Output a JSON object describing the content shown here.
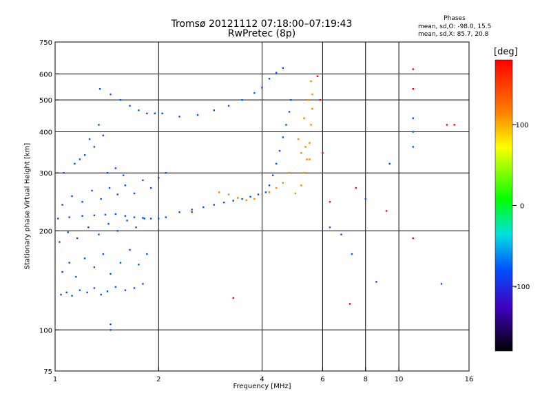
{
  "chart_data": {
    "type": "scatter",
    "title": "Tromsø 20121112 07:18:00–07:19:43",
    "subtitle": "RwPretec (8p)",
    "xlabel": "Frequency [MHz]",
    "ylabel": "Stationary phase Virtual Height [km]",
    "x_scale": "log",
    "y_scale": "log",
    "xlim": [
      1,
      16
    ],
    "ylim": [
      75,
      750
    ],
    "x_ticks": [
      1,
      2,
      4,
      6,
      8,
      10,
      16
    ],
    "y_ticks": [
      75,
      100,
      200,
      300,
      400,
      500,
      600,
      750
    ],
    "x_gridlines": [
      2,
      4,
      6,
      8,
      10
    ],
    "y_gridlines": [
      100,
      200,
      300,
      400,
      500,
      600
    ],
    "grid": true,
    "stats": {
      "heading": "Phases",
      "line_o": "mean, sd,O: -98.0, 15.5",
      "line_x": "mean, sd,X:  85.7, 20.8"
    },
    "colorbar": {
      "label": "[deg]",
      "ticks": [
        100,
        0,
        -100
      ],
      "range": [
        -180,
        180
      ]
    },
    "series": [
      {
        "phase_deg": -105,
        "points": [
          [
            1.04,
            128
          ],
          [
            1.08,
            130
          ],
          [
            1.12,
            127
          ],
          [
            1.18,
            132
          ],
          [
            1.24,
            130
          ],
          [
            1.3,
            134
          ],
          [
            1.36,
            128
          ],
          [
            1.42,
            131
          ],
          [
            1.5,
            135
          ],
          [
            1.6,
            132
          ],
          [
            1.7,
            134
          ],
          [
            1.8,
            138
          ],
          [
            1.05,
            150
          ],
          [
            1.1,
            160
          ],
          [
            1.15,
            145
          ],
          [
            1.22,
            165
          ],
          [
            1.3,
            155
          ],
          [
            1.38,
            170
          ],
          [
            1.45,
            148
          ],
          [
            1.55,
            160
          ],
          [
            1.65,
            175
          ],
          [
            1.75,
            158
          ],
          [
            1.85,
            170
          ],
          [
            1.03,
            185
          ],
          [
            1.09,
            198
          ],
          [
            1.16,
            190
          ],
          [
            1.25,
            205
          ],
          [
            1.34,
            195
          ],
          [
            1.43,
            210
          ],
          [
            1.52,
            200
          ],
          [
            1.62,
            215
          ],
          [
            1.72,
            205
          ],
          [
            1.82,
            218
          ],
          [
            1.02,
            218
          ],
          [
            1.1,
            220
          ],
          [
            1.2,
            222
          ],
          [
            1.3,
            223
          ],
          [
            1.4,
            224
          ],
          [
            1.5,
            225
          ],
          [
            1.6,
            222
          ],
          [
            1.7,
            220
          ],
          [
            1.8,
            219
          ],
          [
            1.9,
            218
          ],
          [
            2.0,
            218
          ],
          [
            2.1,
            220
          ],
          [
            1.05,
            240
          ],
          [
            1.12,
            255
          ],
          [
            1.2,
            245
          ],
          [
            1.28,
            265
          ],
          [
            1.36,
            250
          ],
          [
            1.44,
            270
          ],
          [
            1.52,
            258
          ],
          [
            1.6,
            275
          ],
          [
            1.7,
            260
          ],
          [
            1.8,
            285
          ],
          [
            1.9,
            270
          ],
          [
            2.0,
            290
          ],
          [
            2.1,
            300
          ],
          [
            1.06,
            300
          ],
          [
            1.14,
            320
          ],
          [
            1.22,
            340
          ],
          [
            1.3,
            360
          ],
          [
            1.38,
            390
          ],
          [
            1.34,
            420
          ],
          [
            1.26,
            380
          ],
          [
            1.18,
            330
          ],
          [
            1.42,
            300
          ],
          [
            1.5,
            310
          ],
          [
            1.58,
            295
          ],
          [
            2.3,
            228
          ],
          [
            2.5,
            232
          ],
          [
            2.7,
            236
          ],
          [
            2.9,
            240
          ],
          [
            3.1,
            244
          ],
          [
            3.3,
            247
          ],
          [
            3.5,
            250
          ],
          [
            3.7,
            254
          ],
          [
            3.9,
            258
          ],
          [
            4.1,
            262
          ],
          [
            4.2,
            275
          ],
          [
            4.3,
            295
          ],
          [
            4.4,
            320
          ],
          [
            4.5,
            350
          ],
          [
            4.6,
            385
          ],
          [
            4.7,
            420
          ],
          [
            4.8,
            460
          ],
          [
            4.85,
            500
          ],
          [
            1.35,
            540
          ],
          [
            1.45,
            520
          ],
          [
            1.55,
            500
          ],
          [
            1.65,
            480
          ],
          [
            1.75,
            465
          ],
          [
            1.85,
            455
          ],
          [
            1.95,
            455
          ],
          [
            2.05,
            455
          ],
          [
            2.3,
            445
          ],
          [
            2.6,
            450
          ],
          [
            2.9,
            465
          ],
          [
            3.2,
            480
          ],
          [
            3.5,
            500
          ],
          [
            3.8,
            525
          ],
          [
            4.0,
            545
          ],
          [
            4.2,
            580
          ],
          [
            4.4,
            605
          ],
          [
            4.6,
            625
          ]
        ]
      },
      {
        "phase_deg": 85,
        "points": [
          [
            3.0,
            262
          ],
          [
            3.2,
            258
          ],
          [
            3.4,
            252
          ],
          [
            3.6,
            248
          ],
          [
            3.8,
            250
          ],
          [
            4.0,
            258
          ],
          [
            4.2,
            262
          ],
          [
            4.4,
            270
          ],
          [
            4.6,
            280
          ],
          [
            4.8,
            300
          ],
          [
            5.0,
            260
          ],
          [
            5.2,
            275
          ],
          [
            5.3,
            300
          ],
          [
            5.4,
            330
          ],
          [
            5.5,
            370
          ],
          [
            5.55,
            420
          ],
          [
            5.6,
            470
          ],
          [
            5.6,
            520
          ],
          [
            5.55,
            570
          ],
          [
            5.1,
            380
          ],
          [
            5.3,
            440
          ],
          [
            5.45,
            500
          ],
          [
            5.35,
            360
          ],
          [
            5.5,
            330
          ],
          [
            5.2,
            345
          ]
        ]
      },
      {
        "phase_deg": 130,
        "points": [
          [
            3.3,
            125
          ],
          [
            5.8,
            590
          ],
          [
            11.0,
            620
          ],
          [
            11.0,
            540
          ],
          [
            6.3,
            245
          ],
          [
            6.0,
            345
          ],
          [
            7.2,
            120
          ],
          [
            7.5,
            270
          ],
          [
            9.2,
            230
          ],
          [
            11.0,
            190
          ],
          [
            13.8,
            420
          ],
          [
            14.5,
            420
          ],
          [
            2.5,
            228
          ],
          [
            5.9,
            500
          ]
        ]
      },
      {
        "phase_deg": -100,
        "points": [
          [
            6.3,
            205
          ],
          [
            6.8,
            195
          ],
          [
            7.3,
            170
          ],
          [
            8.0,
            250
          ],
          [
            8.6,
            140
          ],
          [
            9.4,
            320
          ],
          [
            11.0,
            440
          ],
          [
            11.0,
            400
          ],
          [
            11.0,
            360
          ],
          [
            13.3,
            138
          ],
          [
            1.45,
            104
          ],
          [
            1.45,
            100
          ]
        ]
      }
    ]
  }
}
